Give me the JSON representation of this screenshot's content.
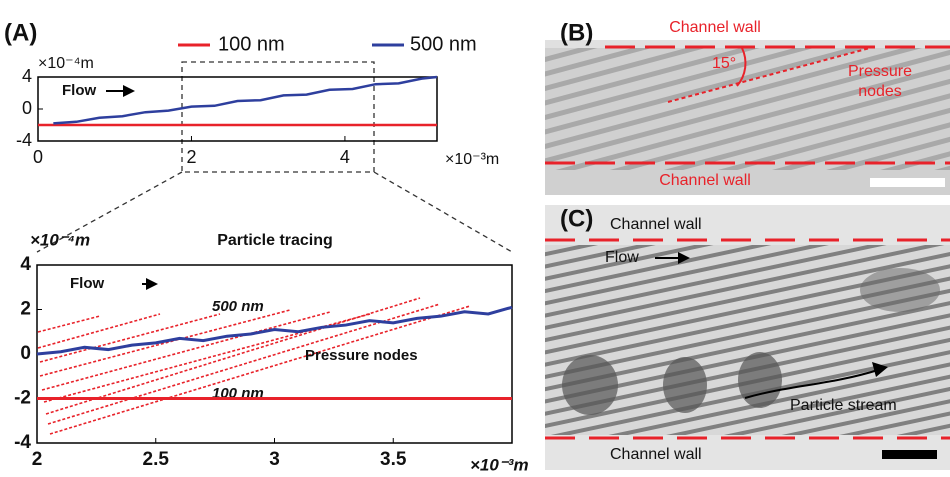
{
  "chart_data": [
    {
      "type": "line",
      "panel_label": "(A)",
      "x_unit": "×10⁻³m",
      "y_unit": "×10⁻⁴m",
      "xlim": [
        0,
        5.2
      ],
      "xticks": [
        0,
        2,
        4
      ],
      "ylim": [
        -4,
        4
      ],
      "yticks": [
        -4,
        0,
        4
      ],
      "annotations": [
        "Flow"
      ],
      "series": [
        {
          "name": "100 nm",
          "color": "#e8222a",
          "x": [
            0,
            5.2
          ],
          "values": [
            -2,
            -2
          ]
        },
        {
          "name": "500 nm",
          "color": "#2e3f9e",
          "x": [
            0.2,
            0.5,
            0.8,
            1.1,
            1.4,
            1.7,
            2.0,
            2.3,
            2.6,
            2.9,
            3.2,
            3.5,
            3.8,
            4.1,
            4.4,
            4.7,
            5.0,
            5.2
          ],
          "values": [
            -1.8,
            -1.6,
            -1.1,
            -0.9,
            -0.4,
            -0.2,
            0.3,
            0.4,
            1.0,
            1.1,
            1.7,
            1.8,
            2.4,
            2.5,
            3.1,
            3.2,
            3.8,
            4.0
          ]
        }
      ]
    },
    {
      "type": "line",
      "title": "Particle tracing",
      "x_unit": "×10⁻³m",
      "y_unit": "×10⁻⁴m",
      "xlim": [
        2,
        4
      ],
      "xticks": [
        2,
        2.5,
        3,
        3.5
      ],
      "ylim": [
        -4,
        4
      ],
      "yticks": [
        -4,
        -2,
        0,
        2,
        4
      ],
      "annotations": [
        "Flow",
        "500 nm",
        "Pressure nodes",
        "100 nm"
      ],
      "series": [
        {
          "color": "#e8222a",
          "x": [
            2,
            4
          ],
          "values": [
            -2,
            -2
          ]
        },
        {
          "color": "#2e3f9e",
          "x": [
            2.0,
            2.1,
            2.2,
            2.3,
            2.4,
            2.5,
            2.6,
            2.7,
            2.8,
            2.9,
            3.0,
            3.1,
            3.2,
            3.3,
            3.4,
            3.5,
            3.6,
            3.7,
            3.8,
            3.9,
            4.0
          ],
          "values": [
            0,
            0.1,
            0.3,
            0.2,
            0.4,
            0.5,
            0.7,
            0.6,
            0.8,
            0.9,
            1.1,
            1.0,
            1.2,
            1.3,
            1.5,
            1.4,
            1.6,
            1.7,
            1.9,
            1.8,
            2.1
          ]
        }
      ]
    }
  ],
  "micrographs": [
    {
      "panel_label": "(B)",
      "texts": [
        "Channel wall",
        "Channel wall",
        "15°",
        "Pressure",
        "nodes"
      ]
    },
    {
      "panel_label": "(C)",
      "texts": [
        "Channel wall",
        "Flow",
        "Particle stream",
        "Channel wall"
      ]
    }
  ]
}
